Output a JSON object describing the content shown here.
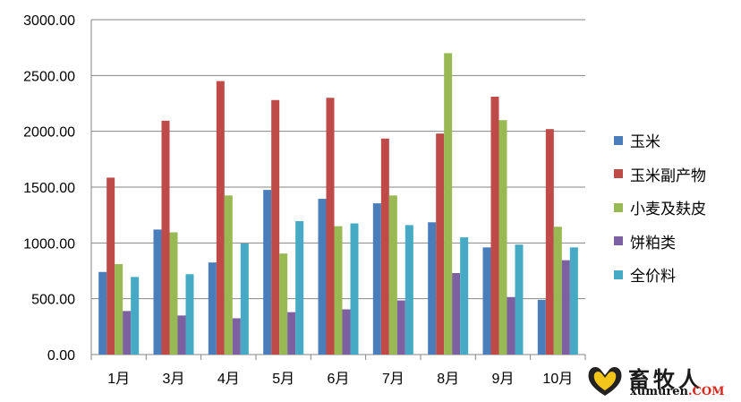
{
  "chart_data": {
    "type": "bar",
    "categories": [
      "1月",
      "3月",
      "4月",
      "5月",
      "6月",
      "7月",
      "8月",
      "9月",
      "10月"
    ],
    "series": [
      {
        "name": "玉米",
        "color": "#4a7ebb",
        "values": [
          740,
          1120,
          825,
          1475,
          1395,
          1355,
          1185,
          960,
          490
        ]
      },
      {
        "name": "玉米副产物",
        "color": "#be4b48",
        "values": [
          1585,
          2095,
          2450,
          2280,
          2300,
          1935,
          1980,
          2310,
          2020
        ]
      },
      {
        "name": "小麦及麸皮",
        "color": "#98b954",
        "values": [
          810,
          1095,
          1425,
          905,
          1150,
          1425,
          2700,
          2100,
          1145
        ]
      },
      {
        "name": "饼粕类",
        "color": "#7d60a0",
        "values": [
          390,
          350,
          325,
          380,
          405,
          485,
          730,
          515,
          845
        ]
      },
      {
        "name": "全价料",
        "color": "#46aac5",
        "values": [
          695,
          720,
          995,
          1195,
          1175,
          1160,
          1050,
          985,
          960
        ]
      }
    ],
    "y_ticks": [
      "0.00",
      "500.00",
      "1000.00",
      "1500.00",
      "2000.00",
      "2500.00",
      "3000.00"
    ],
    "ylim": [
      0,
      3000
    ],
    "grid": true,
    "legend_position": "right"
  },
  "watermark": {
    "brand": "畜牧人",
    "url_main": "xumuren",
    "url_suffix": ".COM"
  }
}
